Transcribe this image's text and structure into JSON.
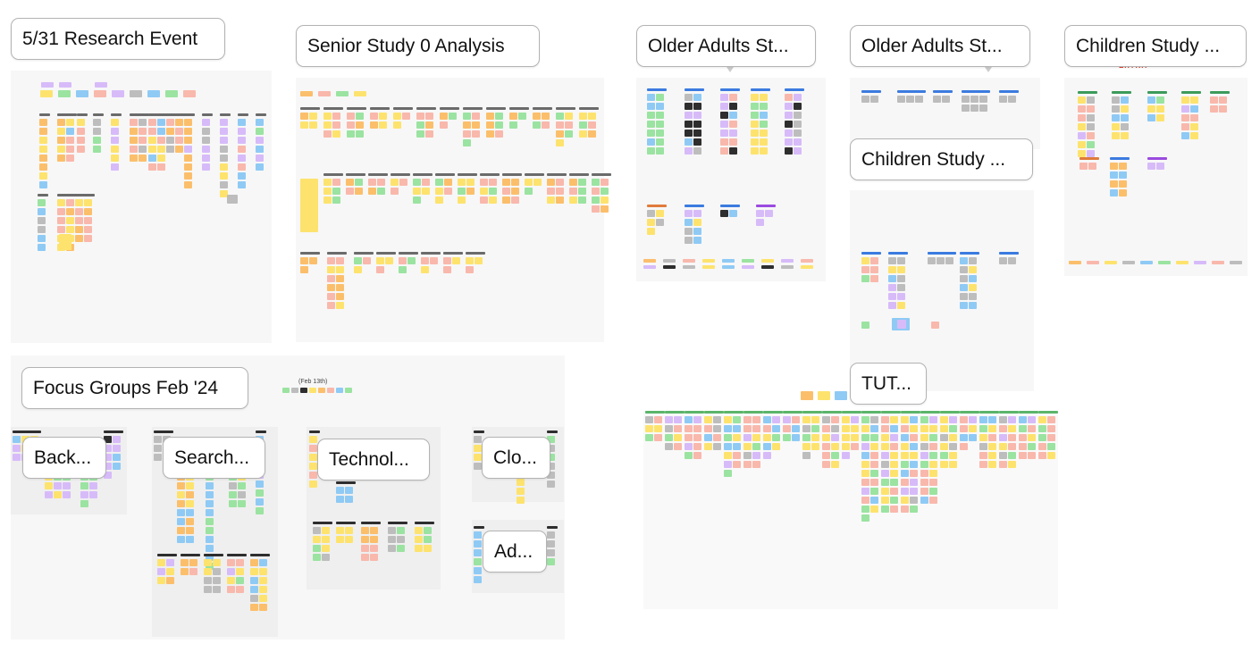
{
  "board": {
    "sections": [
      {
        "id": "research-event",
        "title": "5/31 Research Event"
      },
      {
        "id": "senior-study",
        "title": "Senior Study 0 Analysis"
      },
      {
        "id": "older-adults-1",
        "title": "Older Adults St..."
      },
      {
        "id": "older-adults-2",
        "title": "Older Adults St..."
      },
      {
        "id": "children-study-1",
        "title": "Children Study ..."
      },
      {
        "id": "children-study-2",
        "title": "Children Study ..."
      },
      {
        "id": "focus-groups",
        "title": "Focus Groups Feb '24"
      },
      {
        "id": "background",
        "title": "Back..."
      },
      {
        "id": "search",
        "title": "Search..."
      },
      {
        "id": "technology",
        "title": "Technol..."
      },
      {
        "id": "clo",
        "title": "Clo..."
      },
      {
        "id": "ad",
        "title": "Ad..."
      },
      {
        "id": "tut",
        "title": "TUT..."
      }
    ],
    "focus_groups_date": "(Feb 13th)",
    "extra_tag": "EXTRA"
  },
  "colors": {
    "canvas": "#ffffff",
    "section_bg": "#f7f7f7",
    "nested_section_bg": "#efefef",
    "sticky_yellow": "#fde36e",
    "sticky_orange": "#fbbf6b",
    "sticky_pink": "#f9b8ac",
    "sticky_green": "#9be3a1",
    "sticky_blue": "#8fcaf5",
    "sticky_lavender": "#d7bbf9",
    "sticky_gray": "#bdbdbd",
    "sticky_dark": "#2e2e2e"
  }
}
